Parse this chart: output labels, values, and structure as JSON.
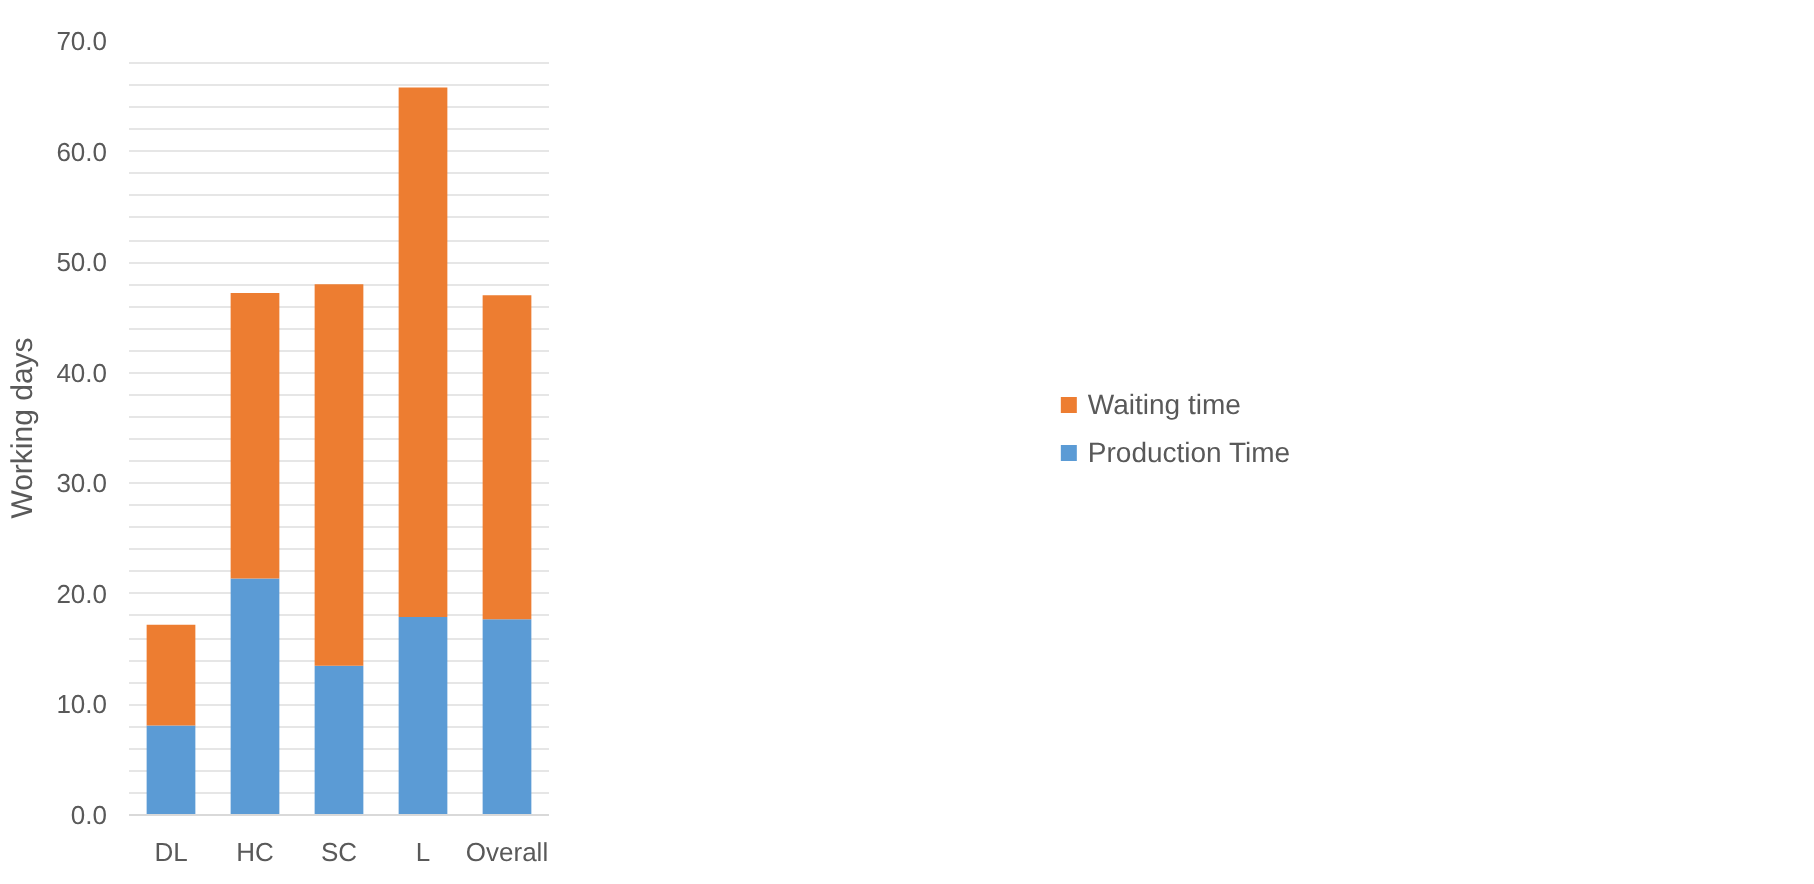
{
  "chart_data": {
    "type": "bar",
    "stacked": true,
    "ylabel": "Working days",
    "categories": [
      "DL",
      "HC",
      "SC",
      "L",
      "Overall"
    ],
    "series": [
      {
        "name": "Production Time",
        "color": "#5b9bd5",
        "values": [
          8.1,
          21.4,
          13.5,
          17.9,
          17.7
        ]
      },
      {
        "name": "Waiting time",
        "color": "#ed7d31",
        "values": [
          9.1,
          25.8,
          34.5,
          47.9,
          29.3
        ]
      }
    ],
    "ylim": [
      0,
      70
    ],
    "yticks": [
      {
        "value": 0,
        "label": "0.0"
      },
      {
        "value": 2,
        "label": null
      },
      {
        "value": 4,
        "label": null
      },
      {
        "value": 6,
        "label": null
      },
      {
        "value": 8,
        "label": null
      },
      {
        "value": 10,
        "label": "10.0"
      },
      {
        "value": 12,
        "label": null
      },
      {
        "value": 14,
        "label": null
      },
      {
        "value": 16,
        "label": null
      },
      {
        "value": 18,
        "label": null
      },
      {
        "value": 20,
        "label": "20.0"
      },
      {
        "value": 22,
        "label": null
      },
      {
        "value": 24,
        "label": null
      },
      {
        "value": 26,
        "label": null
      },
      {
        "value": 28,
        "label": null
      },
      {
        "value": 30,
        "label": "30.0"
      },
      {
        "value": 32,
        "label": null
      },
      {
        "value": 34,
        "label": null
      },
      {
        "value": 36,
        "label": null
      },
      {
        "value": 38,
        "label": null
      },
      {
        "value": 40,
        "label": "40.0"
      },
      {
        "value": 42,
        "label": null
      },
      {
        "value": 44,
        "label": null
      },
      {
        "value": 46,
        "label": null
      },
      {
        "value": 48,
        "label": null
      },
      {
        "value": 50,
        "label": "50.0"
      },
      {
        "value": 52,
        "label": null
      },
      {
        "value": 54,
        "label": null
      },
      {
        "value": 56,
        "label": null
      },
      {
        "value": 58,
        "label": null
      },
      {
        "value": 60,
        "label": "60.0"
      },
      {
        "value": 62,
        "label": null
      },
      {
        "value": 64,
        "label": null
      },
      {
        "value": 66,
        "label": null
      },
      {
        "value": 68,
        "label": null
      },
      {
        "value": 70,
        "label": "70.0"
      }
    ],
    "grid": "y",
    "legend": "right"
  }
}
